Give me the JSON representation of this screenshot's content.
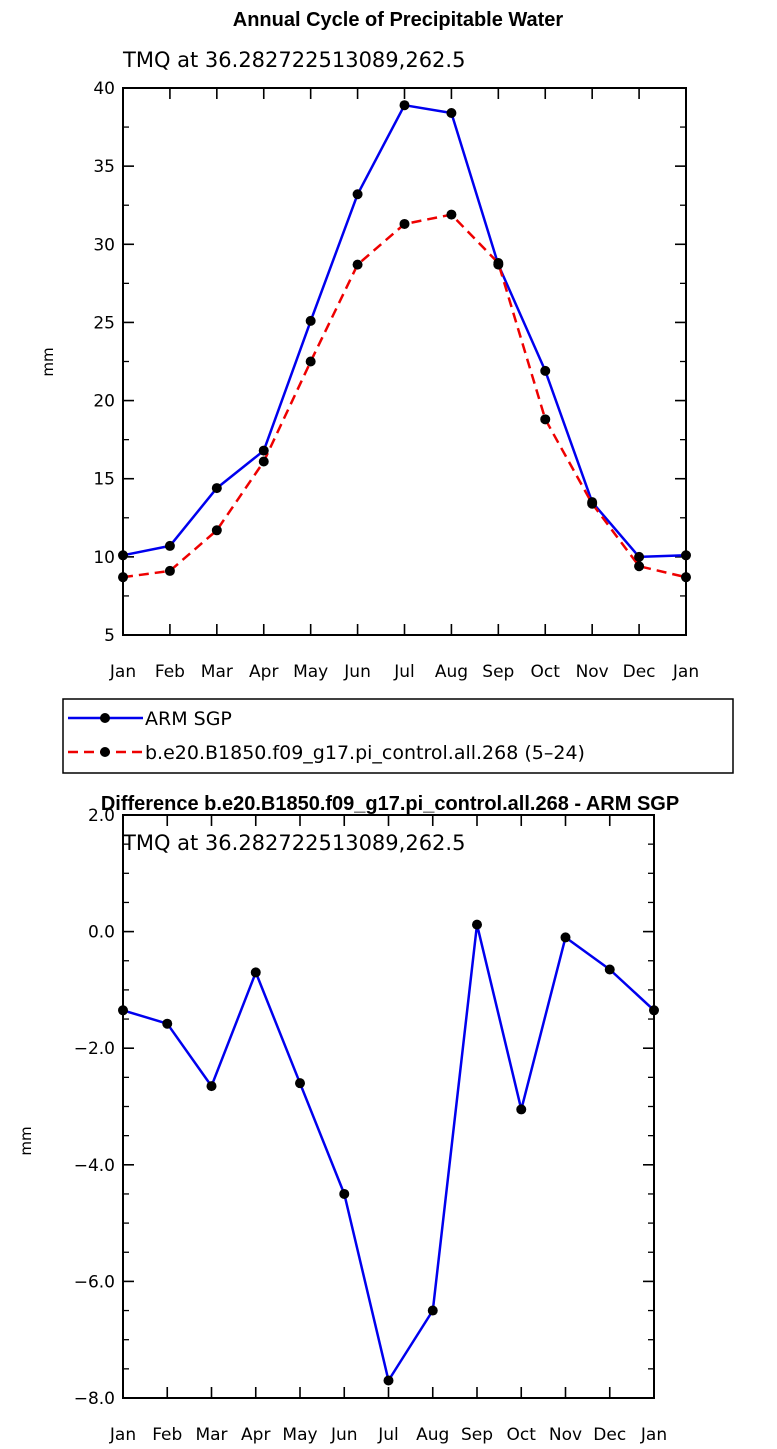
{
  "chart_data": [
    {
      "type": "line",
      "title": "Annual Cycle of Precipitable Water",
      "subtitle": "TMQ at 36.282722513089,262.5",
      "ylabel": "mm",
      "xlabel": "",
      "categories": [
        "Jan",
        "Feb",
        "Mar",
        "Apr",
        "May",
        "Jun",
        "Jul",
        "Aug",
        "Sep",
        "Oct",
        "Nov",
        "Dec",
        "Jan"
      ],
      "ylim": [
        5,
        40
      ],
      "yticks": [
        5,
        10,
        15,
        20,
        25,
        30,
        35,
        40
      ],
      "ytick_labels": [
        "5",
        "10",
        "15",
        "20",
        "25",
        "30",
        "35",
        "40"
      ],
      "series": [
        {
          "name": "ARM SGP",
          "color": "#0000ee",
          "style": "solid",
          "values": [
            10.1,
            10.7,
            14.4,
            16.8,
            25.1,
            33.2,
            38.9,
            38.4,
            28.7,
            21.9,
            13.5,
            10.0,
            10.1
          ]
        },
        {
          "name": "b.e20.B1850.f09_g17.pi_control.all.268 (5–24)",
          "color": "#ee0000",
          "style": "dashed",
          "values": [
            8.7,
            9.1,
            11.7,
            16.1,
            22.5,
            28.7,
            31.3,
            31.9,
            28.8,
            18.8,
            13.4,
            9.4,
            8.7
          ]
        }
      ],
      "legend": "below"
    },
    {
      "type": "line",
      "title": "Difference b.e20.B1850.f09_g17.pi_control.all.268 - ARM SGP",
      "subtitle": "TMQ at 36.282722513089,262.5",
      "ylabel": "mm",
      "xlabel": "",
      "categories": [
        "Jan",
        "Feb",
        "Mar",
        "Apr",
        "May",
        "Jun",
        "Jul",
        "Aug",
        "Sep",
        "Oct",
        "Nov",
        "Dec",
        "Jan"
      ],
      "ylim": [
        -8.0,
        2.0
      ],
      "yticks": [
        -8.0,
        -6.0,
        -4.0,
        -2.0,
        0.0,
        2.0
      ],
      "ytick_labels": [
        "−8.0",
        "−6.0",
        "−4.0",
        "−2.0",
        "0.0",
        "2.0"
      ],
      "series": [
        {
          "color": "#0000ee",
          "style": "solid",
          "values": [
            -1.35,
            -1.58,
            -2.65,
            -0.7,
            -2.6,
            -4.5,
            -7.7,
            -6.5,
            0.12,
            -3.05,
            -0.1,
            -0.65,
            -1.35
          ]
        }
      ]
    }
  ]
}
